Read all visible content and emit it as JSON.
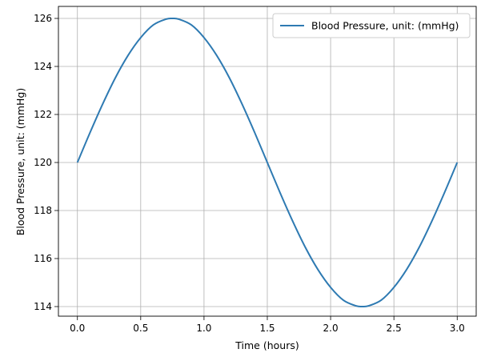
{
  "chart_data": {
    "type": "line",
    "title": "",
    "xlabel": "Time (hours)",
    "ylabel": "Blood Pressure, unit: (mmHg)",
    "xlim": [
      -0.15,
      3.15
    ],
    "ylim": [
      113.6,
      126.5
    ],
    "xticks": [
      0.0,
      0.5,
      1.0,
      1.5,
      2.0,
      2.5,
      3.0
    ],
    "xtick_labels": [
      "0.0",
      "0.5",
      "1.0",
      "1.5",
      "2.0",
      "2.5",
      "3.0"
    ],
    "yticks": [
      114,
      116,
      118,
      120,
      122,
      124,
      126
    ],
    "ytick_labels": [
      "114",
      "116",
      "118",
      "120",
      "122",
      "124",
      "126"
    ],
    "grid": true,
    "legend_position": "top-right",
    "series": [
      {
        "name": "Blood Pressure, unit: (mmHg)",
        "color": "#2e7ab2",
        "x": [
          0.0,
          0.1,
          0.2,
          0.3,
          0.4,
          0.5,
          0.6,
          0.7,
          0.75,
          0.8,
          0.9,
          1.0,
          1.1,
          1.2,
          1.3,
          1.4,
          1.5,
          1.6,
          1.7,
          1.8,
          1.9,
          2.0,
          2.1,
          2.2,
          2.25,
          2.3,
          2.4,
          2.5,
          2.6,
          2.7,
          2.8,
          2.9,
          3.0
        ],
        "y": [
          120.0,
          121.25,
          122.44,
          123.53,
          124.46,
          125.2,
          125.73,
          125.97,
          126.0,
          125.97,
          125.73,
          125.2,
          124.46,
          123.53,
          122.44,
          121.25,
          120.0,
          118.75,
          117.56,
          116.47,
          115.54,
          114.8,
          114.27,
          114.03,
          114.0,
          114.03,
          114.27,
          114.8,
          115.54,
          116.47,
          117.56,
          118.75,
          120.0
        ]
      }
    ]
  }
}
